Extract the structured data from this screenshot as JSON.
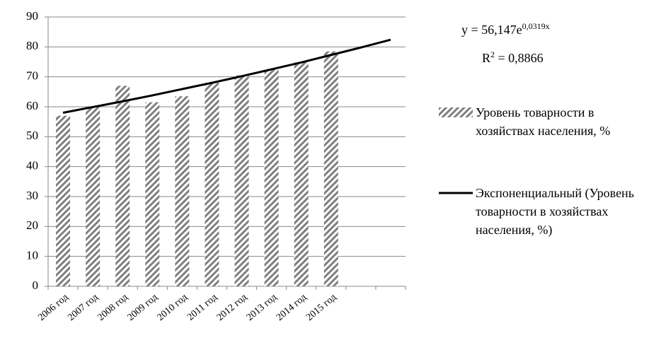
{
  "chart_data": {
    "type": "bar",
    "categories": [
      "2006 год",
      "2007 год",
      "2008 год",
      "2009 год",
      "2010  год",
      "2011 год",
      "2012 год",
      "2013 год",
      "2014 год",
      "2015 год",
      null,
      null
    ],
    "series": [
      {
        "name": "Уровень товарности в хозяйствах населения, %",
        "color": "#7f7f7f",
        "values": [
          57,
          60,
          67,
          61.5,
          63.5,
          68,
          70.5,
          72.5,
          75,
          78.5,
          null,
          null
        ]
      },
      {
        "name": "Экспоненциальный (Уровень товарности в хозяйствах населения, %)",
        "type": "line",
        "color": "#000000",
        "values": [
          58.0,
          59.9,
          61.8,
          63.8,
          65.9,
          68.0,
          70.2,
          72.5,
          74.8,
          77.3,
          79.8,
          82.4
        ]
      }
    ],
    "annotations": {
      "equation": "y = 56,147e",
      "exponent": "0,0319x",
      "r": "R",
      "r_power": "2",
      "r_value": " = 0,8866"
    },
    "ylim": [
      0,
      90
    ],
    "yticks": [
      0,
      10,
      20,
      30,
      40,
      50,
      60,
      70,
      80,
      90
    ],
    "grid": true
  }
}
